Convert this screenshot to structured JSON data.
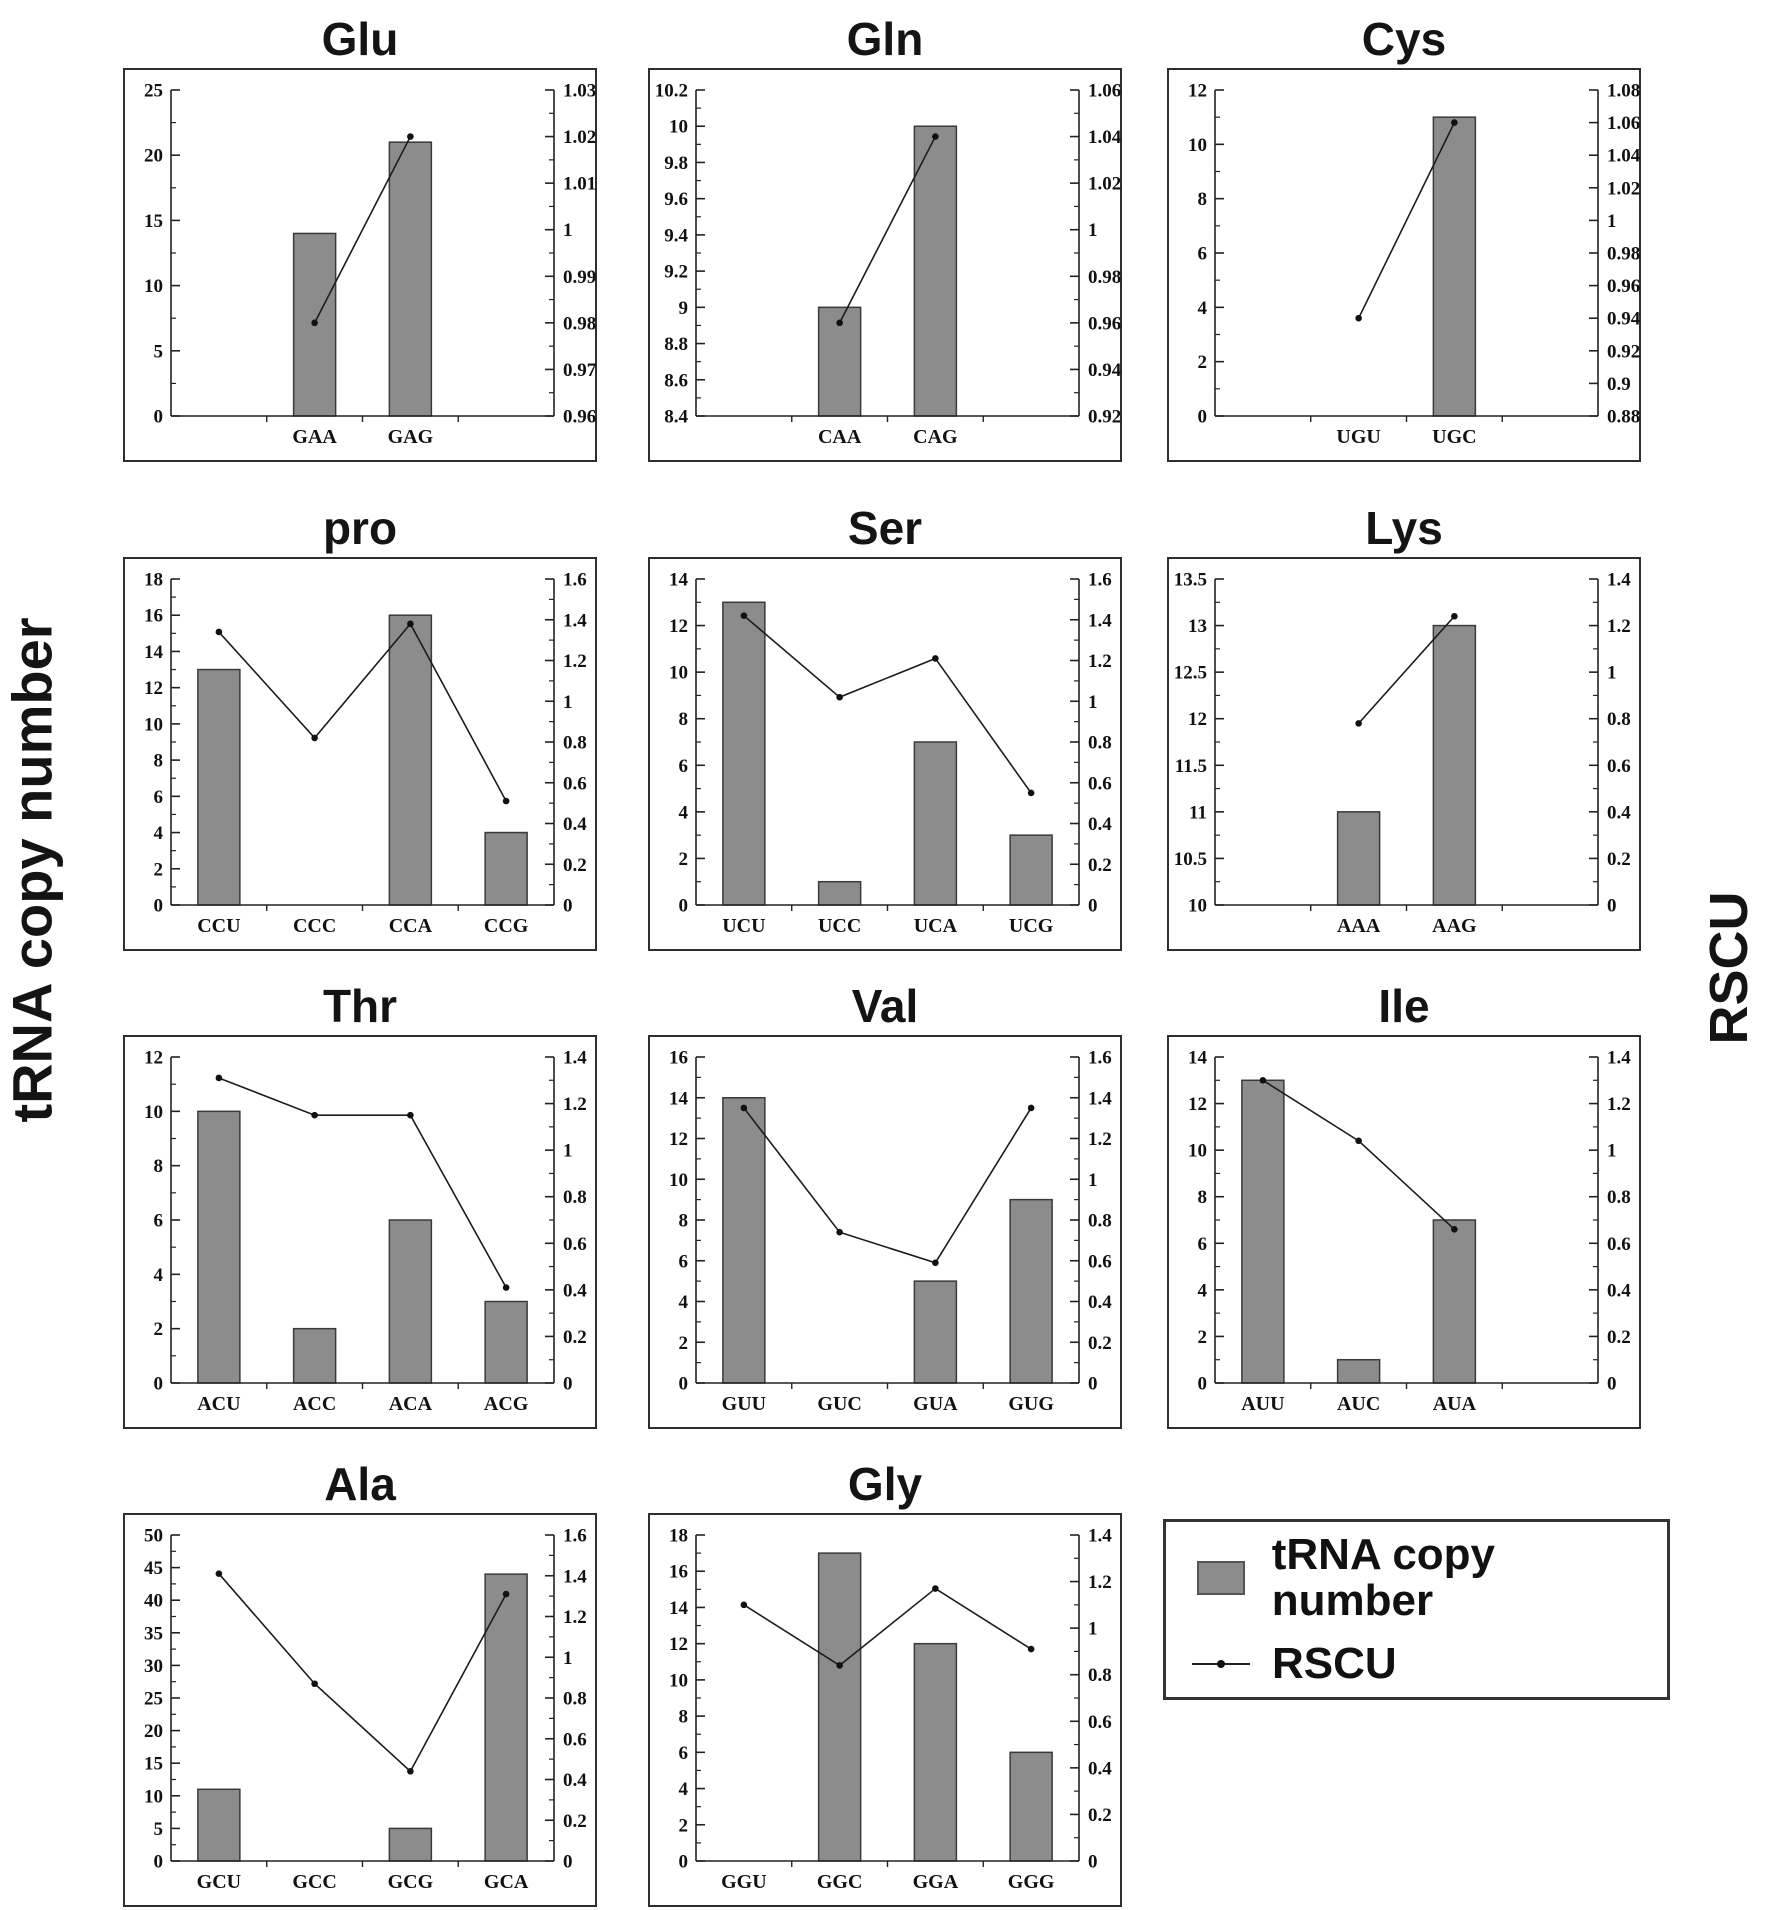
{
  "figure": {
    "left_axis_label": "tRNA copy number",
    "right_axis_label": "RSCU",
    "legend": {
      "items": [
        {
          "label": "tRNA copy number",
          "marker": "bar-swatch"
        },
        {
          "label": "RSCU",
          "marker": "line-dot"
        }
      ]
    },
    "colors": {
      "bar": "#8c8c8c",
      "bar_edge": "#3a3a3a",
      "ink": "#222222",
      "text": "#111111"
    }
  },
  "chart_data": [
    {
      "id": "glu",
      "type": "bar-line",
      "title": "Glu",
      "categories": [
        "GAA",
        "GAG"
      ],
      "slots": 4,
      "start_slot": 1,
      "series": [
        {
          "name": "tRNA copy number",
          "type": "bar",
          "axis": "left",
          "values": [
            14,
            21
          ]
        },
        {
          "name": "RSCU",
          "type": "line",
          "axis": "right",
          "values": [
            0.98,
            1.02
          ]
        }
      ],
      "left_axis": {
        "min": 0,
        "max": 25,
        "step": 5
      },
      "right_axis": {
        "min": 0.96,
        "max": 1.03,
        "step": 0.01
      }
    },
    {
      "id": "gln",
      "type": "bar-line",
      "title": "Gln",
      "categories": [
        "CAA",
        "CAG"
      ],
      "slots": 4,
      "start_slot": 1,
      "series": [
        {
          "name": "tRNA copy number",
          "type": "bar",
          "axis": "left",
          "values": [
            9,
            10
          ]
        },
        {
          "name": "RSCU",
          "type": "line",
          "axis": "right",
          "values": [
            0.96,
            1.04
          ]
        }
      ],
      "left_axis": {
        "min": 8.4,
        "max": 10.2,
        "step": 0.2
      },
      "right_axis": {
        "min": 0.92,
        "max": 1.06,
        "step": 0.02
      }
    },
    {
      "id": "cys",
      "type": "bar-line",
      "title": "Cys",
      "categories": [
        "UGU",
        "UGC"
      ],
      "slots": 4,
      "start_slot": 1,
      "series": [
        {
          "name": "tRNA copy number",
          "type": "bar",
          "axis": "left",
          "values": [
            0,
            11
          ]
        },
        {
          "name": "RSCU",
          "type": "line",
          "axis": "right",
          "values": [
            0.94,
            1.06
          ]
        }
      ],
      "left_axis": {
        "min": 0,
        "max": 12,
        "step": 2
      },
      "right_axis": {
        "min": 0.88,
        "max": 1.08,
        "step": 0.02
      }
    },
    {
      "id": "pro",
      "type": "bar-line",
      "title": "pro",
      "categories": [
        "CCU",
        "CCC",
        "CCA",
        "CCG"
      ],
      "slots": 4,
      "start_slot": 0,
      "series": [
        {
          "name": "tRNA copy number",
          "type": "bar",
          "axis": "left",
          "values": [
            13,
            0,
            16,
            4
          ]
        },
        {
          "name": "RSCU",
          "type": "line",
          "axis": "right",
          "values": [
            1.34,
            0.82,
            1.38,
            0.51
          ]
        }
      ],
      "left_axis": {
        "min": 0,
        "max": 18,
        "step": 2
      },
      "right_axis": {
        "min": 0,
        "max": 1.6,
        "step": 0.2
      }
    },
    {
      "id": "ser",
      "type": "bar-line",
      "title": "Ser",
      "categories": [
        "UCU",
        "UCC",
        "UCA",
        "UCG"
      ],
      "slots": 4,
      "start_slot": 0,
      "series": [
        {
          "name": "tRNA copy number",
          "type": "bar",
          "axis": "left",
          "values": [
            13,
            1,
            7,
            3
          ]
        },
        {
          "name": "RSCU",
          "type": "line",
          "axis": "right",
          "values": [
            1.42,
            1.02,
            1.21,
            0.55
          ]
        }
      ],
      "left_axis": {
        "min": 0,
        "max": 14,
        "step": 2
      },
      "right_axis": {
        "min": 0,
        "max": 1.6,
        "step": 0.2
      }
    },
    {
      "id": "lys",
      "type": "bar-line",
      "title": "Lys",
      "categories": [
        "AAA",
        "AAG"
      ],
      "slots": 4,
      "start_slot": 1,
      "series": [
        {
          "name": "tRNA copy number",
          "type": "bar",
          "axis": "left",
          "values": [
            11,
            13
          ]
        },
        {
          "name": "RSCU",
          "type": "line",
          "axis": "right",
          "values": [
            0.78,
            1.24
          ]
        }
      ],
      "left_axis": {
        "min": 10,
        "max": 13.5,
        "step": 0.5
      },
      "right_axis": {
        "min": 0,
        "max": 1.4,
        "step": 0.2
      }
    },
    {
      "id": "thr",
      "type": "bar-line",
      "title": "Thr",
      "categories": [
        "ACU",
        "ACC",
        "ACA",
        "ACG"
      ],
      "slots": 4,
      "start_slot": 0,
      "series": [
        {
          "name": "tRNA copy number",
          "type": "bar",
          "axis": "left",
          "values": [
            10,
            2,
            6,
            3
          ]
        },
        {
          "name": "RSCU",
          "type": "line",
          "axis": "right",
          "values": [
            1.31,
            1.15,
            1.15,
            0.41
          ]
        }
      ],
      "left_axis": {
        "min": 0,
        "max": 12,
        "step": 2
      },
      "right_axis": {
        "min": 0,
        "max": 1.4,
        "step": 0.2
      }
    },
    {
      "id": "val",
      "type": "bar-line",
      "title": "Val",
      "categories": [
        "GUU",
        "GUC",
        "GUA",
        "GUG"
      ],
      "slots": 4,
      "start_slot": 0,
      "series": [
        {
          "name": "tRNA copy number",
          "type": "bar",
          "axis": "left",
          "values": [
            14,
            0,
            5,
            9
          ]
        },
        {
          "name": "RSCU",
          "type": "line",
          "axis": "right",
          "values": [
            1.35,
            0.74,
            0.59,
            1.35
          ]
        }
      ],
      "left_axis": {
        "min": 0,
        "max": 16,
        "step": 2
      },
      "right_axis": {
        "min": 0,
        "max": 1.6,
        "step": 0.2
      }
    },
    {
      "id": "ile",
      "type": "bar-line",
      "title": "Ile",
      "categories": [
        "AUU",
        "AUC",
        "AUA"
      ],
      "slots": 4,
      "start_slot": 0,
      "series": [
        {
          "name": "tRNA copy number",
          "type": "bar",
          "axis": "left",
          "values": [
            13,
            1,
            7
          ]
        },
        {
          "name": "RSCU",
          "type": "line",
          "axis": "right",
          "values": [
            1.3,
            1.04,
            0.66
          ]
        }
      ],
      "left_axis": {
        "min": 0,
        "max": 14,
        "step": 2
      },
      "right_axis": {
        "min": 0,
        "max": 1.4,
        "step": 0.2
      }
    },
    {
      "id": "ala",
      "type": "bar-line",
      "title": "Ala",
      "categories": [
        "GCU",
        "GCC",
        "GCG",
        "GCA"
      ],
      "slots": 4,
      "start_slot": 0,
      "series": [
        {
          "name": "tRNA copy number",
          "type": "bar",
          "axis": "left",
          "values": [
            11,
            0,
            5,
            44
          ]
        },
        {
          "name": "RSCU",
          "type": "line",
          "axis": "right",
          "values": [
            1.41,
            0.87,
            0.44,
            1.31
          ]
        }
      ],
      "left_axis": {
        "min": 0,
        "max": 50,
        "step": 5
      },
      "right_axis": {
        "min": 0,
        "max": 1.6,
        "step": 0.2
      }
    },
    {
      "id": "gly",
      "type": "bar-line",
      "title": "Gly",
      "categories": [
        "GGU",
        "GGC",
        "GGA",
        "GGG"
      ],
      "slots": 4,
      "start_slot": 0,
      "series": [
        {
          "name": "tRNA copy number",
          "type": "bar",
          "axis": "left",
          "values": [
            0,
            17,
            12,
            6
          ]
        },
        {
          "name": "RSCU",
          "type": "line",
          "axis": "right",
          "values": [
            1.1,
            0.84,
            1.17,
            0.91
          ]
        }
      ],
      "left_axis": {
        "min": 0,
        "max": 18,
        "step": 2
      },
      "right_axis": {
        "min": 0,
        "max": 1.4,
        "step": 0.2
      }
    }
  ]
}
